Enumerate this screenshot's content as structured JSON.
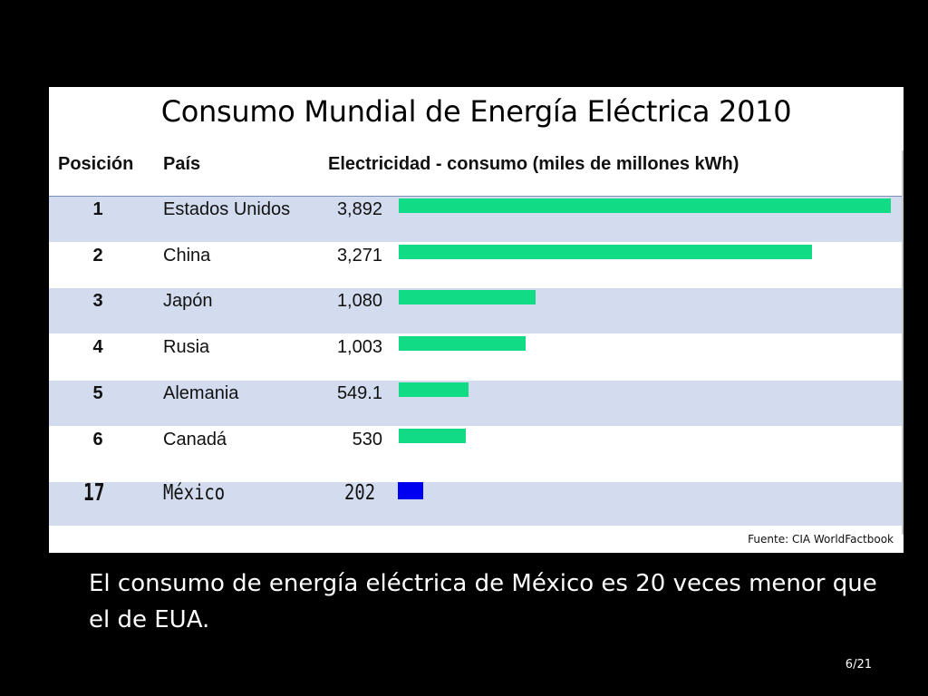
{
  "slide": {
    "caption": "El consumo de energía eléctrica de México es 20 veces menor que el de EUA.",
    "page_number": "6/21",
    "colors": {
      "background": "#000000",
      "bar": "#11dc85",
      "highlight_bar": "#0000f0",
      "row_shade": "#d3dcee"
    }
  },
  "chart_data": {
    "type": "bar",
    "title": "Consumo Mundial de Energía Eléctrica 2010",
    "columns": {
      "rank": "Posición",
      "country": "País",
      "value": "Electricidad - consumo (miles de millones kWh)"
    },
    "rows": [
      {
        "rank": "1",
        "country": "Estados Unidos",
        "value_label": "3,892",
        "value": 3892,
        "highlight": false
      },
      {
        "rank": "2",
        "country": "China",
        "value_label": "3,271",
        "value": 3271,
        "highlight": false
      },
      {
        "rank": "3",
        "country": "Japón",
        "value_label": "1,080",
        "value": 1080,
        "highlight": false
      },
      {
        "rank": "4",
        "country": "Rusia",
        "value_label": "1,003",
        "value": 1003,
        "highlight": false
      },
      {
        "rank": "5",
        "country": "Alemania",
        "value_label": "549.1",
        "value": 549.1,
        "highlight": false
      },
      {
        "rank": "6",
        "country": "Canadá",
        "value_label": "530",
        "value": 530,
        "highlight": false
      },
      {
        "rank": "17",
        "country": "México",
        "value_label": "202",
        "value": 202,
        "highlight": true
      }
    ],
    "value_max": 3892,
    "source": "Fuente: CIA WorldFactbook"
  }
}
